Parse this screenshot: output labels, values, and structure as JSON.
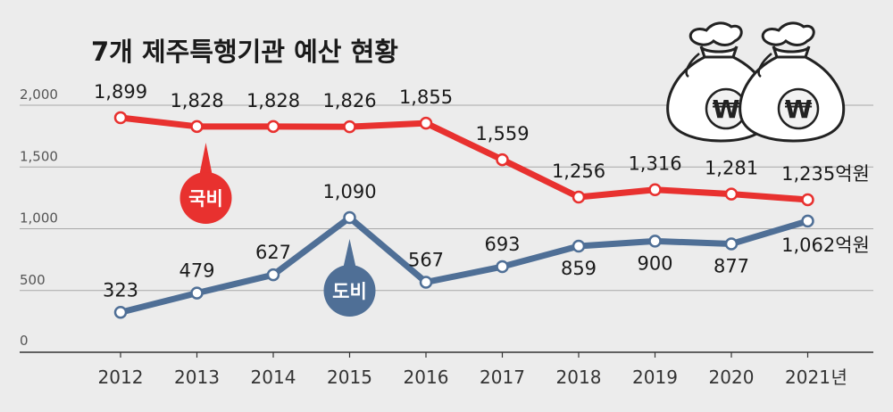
{
  "title": "7개 제주특행기관 예산 현황",
  "chart_data": {
    "type": "line",
    "categories": [
      "2012",
      "2013",
      "2014",
      "2015",
      "2016",
      "2017",
      "2018",
      "2019",
      "2020",
      "2021"
    ],
    "x_unit_suffix": "년",
    "y_ticks": [
      "0",
      "500",
      "1,000",
      "1,500",
      "2,000"
    ],
    "ylim": [
      0,
      2000
    ],
    "grid": true,
    "series": [
      {
        "name": "국비",
        "color": "#e8312f",
        "values": [
          1899,
          1828,
          1828,
          1826,
          1855,
          1559,
          1256,
          1316,
          1281,
          1235
        ],
        "labels": [
          "1,899",
          "1,828",
          "1,828",
          "1,826",
          "1,855",
          "1,559",
          "1,256",
          "1,316",
          "1,281",
          "1,235억원"
        ]
      },
      {
        "name": "도비",
        "color": "#4f6f96",
        "values": [
          323,
          479,
          627,
          1090,
          567,
          693,
          859,
          900,
          877,
          1062
        ],
        "labels": [
          "323",
          "479",
          "627",
          "1,090",
          "567",
          "693",
          "859",
          "900",
          "877",
          "1,062억원"
        ]
      }
    ]
  },
  "icons": [
    "money-bag-icon",
    "money-bag-icon"
  ],
  "currency_symbol": "₩"
}
